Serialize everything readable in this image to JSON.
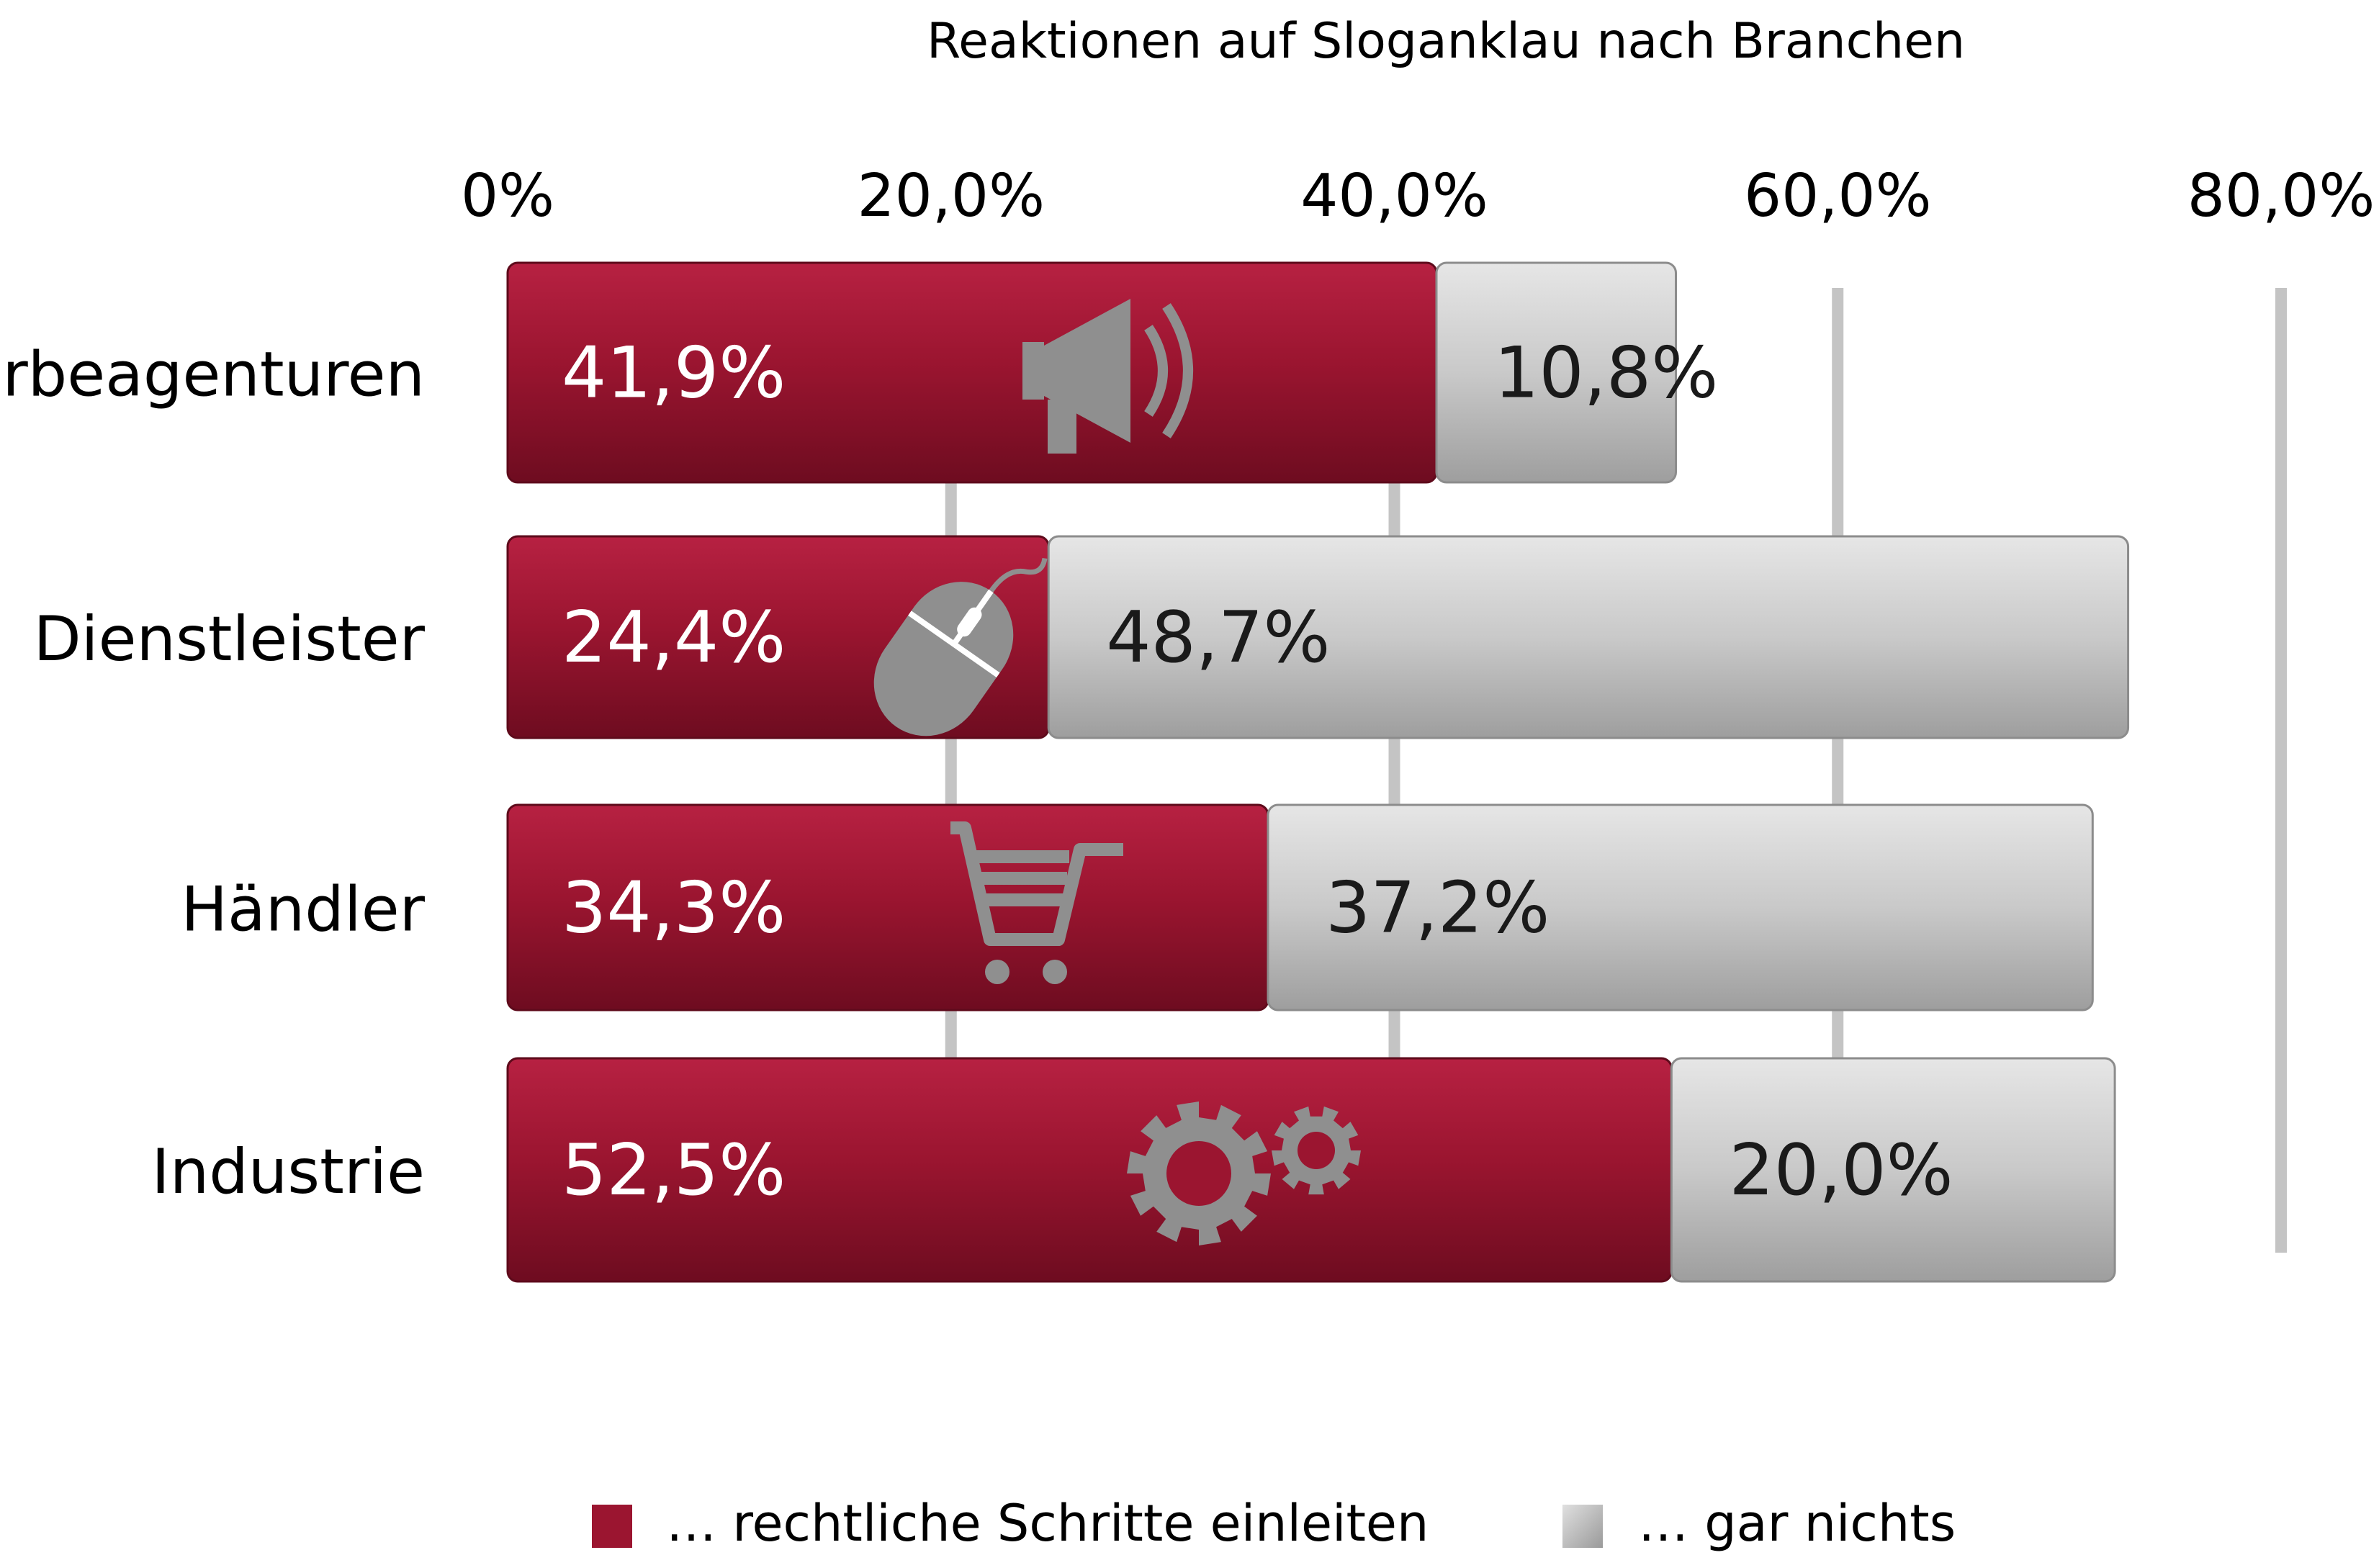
{
  "chart_data": {
    "type": "bar",
    "stacked": true,
    "orientation": "horizontal",
    "title": "Reaktionen auf Sloganklau nach Branchen",
    "categories": [
      "Werbeagenturen",
      "Dienstleister",
      "Händler",
      "Industrie"
    ],
    "category_icons": [
      "megaphone-icon",
      "mouse-icon",
      "shopping-cart-icon",
      "gears-icon"
    ],
    "series": [
      {
        "name": "… rechtliche Schritte einleiten",
        "values": [
          41.9,
          24.4,
          34.3,
          52.5
        ],
        "labels": [
          "41,9%",
          "24,4%",
          "34,3%",
          "52,5%"
        ],
        "color": "#9b1530"
      },
      {
        "name": "… gar nichts",
        "values": [
          10.8,
          48.7,
          37.2,
          20.0
        ],
        "labels": [
          "10,8%",
          "48,7%",
          "37,2%",
          "20,0%"
        ],
        "color": "#bdbdbd"
      }
    ],
    "x_ticks": [
      0,
      20,
      40,
      60,
      80
    ],
    "x_tick_labels": [
      "0%",
      "20,0%",
      "40,0%",
      "60,0%",
      "80,0%"
    ],
    "xlim": [
      0,
      80
    ],
    "axis_position": "top",
    "grid": true,
    "legend_position": "bottom"
  }
}
